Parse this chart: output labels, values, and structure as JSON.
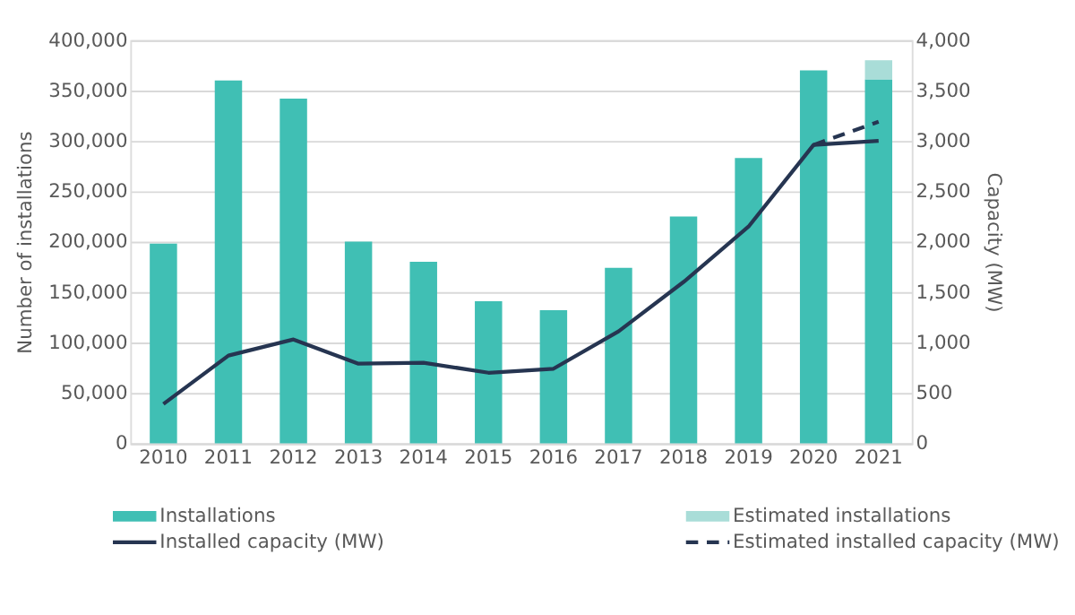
{
  "chart_data": {
    "type": "bar",
    "categories": [
      "2010",
      "2011",
      "2012",
      "2013",
      "2014",
      "2015",
      "2016",
      "2017",
      "2018",
      "2019",
      "2020",
      "2021"
    ],
    "ylabel": "Number of installations",
    "y2label": "Capacity (MW)",
    "ylim": [
      0,
      400000
    ],
    "yticks": [
      0,
      {
        "value": 50000,
        "label": "50,000"
      },
      {
        "value": 100000,
        "label": "100,000"
      },
      {
        "value": 150000,
        "label": "150,000"
      },
      {
        "value": 200000,
        "label": "200,000"
      },
      {
        "value": 250000,
        "label": "250,000"
      },
      {
        "value": 300000,
        "label": "300,000"
      },
      {
        "value": 350000,
        "label": "350,000"
      },
      {
        "value": 400000,
        "label": "400,000"
      }
    ],
    "y2lim": [
      0,
      4000
    ],
    "y2ticks": [
      0,
      500,
      {
        "value": 1000,
        "label": "1,000"
      },
      {
        "value": 1500,
        "label": "1,500"
      },
      {
        "value": 2000,
        "label": "2,000"
      },
      {
        "value": 2500,
        "label": "2,500"
      },
      {
        "value": 3000,
        "label": "3,000"
      },
      {
        "value": 3500,
        "label": "3,500"
      },
      {
        "value": 4000,
        "label": "4,000"
      }
    ],
    "stacked": true,
    "grid": "y",
    "legend": "bottom",
    "series": [
      {
        "name": "Installations",
        "type": "bar",
        "color": "#40bfb4",
        "values": [
          198000,
          360000,
          342000,
          200000,
          180000,
          141000,
          132000,
          174000,
          225000,
          283000,
          370000,
          361000
        ]
      },
      {
        "name": "Estimated installations",
        "type": "bar",
        "color": "#a9ddd8",
        "values": [
          null,
          null,
          null,
          null,
          null,
          null,
          null,
          null,
          null,
          null,
          null,
          19000
        ]
      },
      {
        "name": "Installed capacity (MW)",
        "type": "line",
        "axis": "y2",
        "color": "#263551",
        "line_style": "solid",
        "values": [
          390,
          870,
          1030,
          790,
          800,
          700,
          740,
          1110,
          1600,
          2150,
          2960,
          3000
        ]
      },
      {
        "name": "Estimated installed capacity (MW)",
        "type": "line",
        "axis": "y2",
        "color": "#263551",
        "line_style": "dashed",
        "values": [
          null,
          null,
          null,
          null,
          null,
          null,
          null,
          null,
          null,
          null,
          2960,
          3190
        ]
      }
    ]
  }
}
